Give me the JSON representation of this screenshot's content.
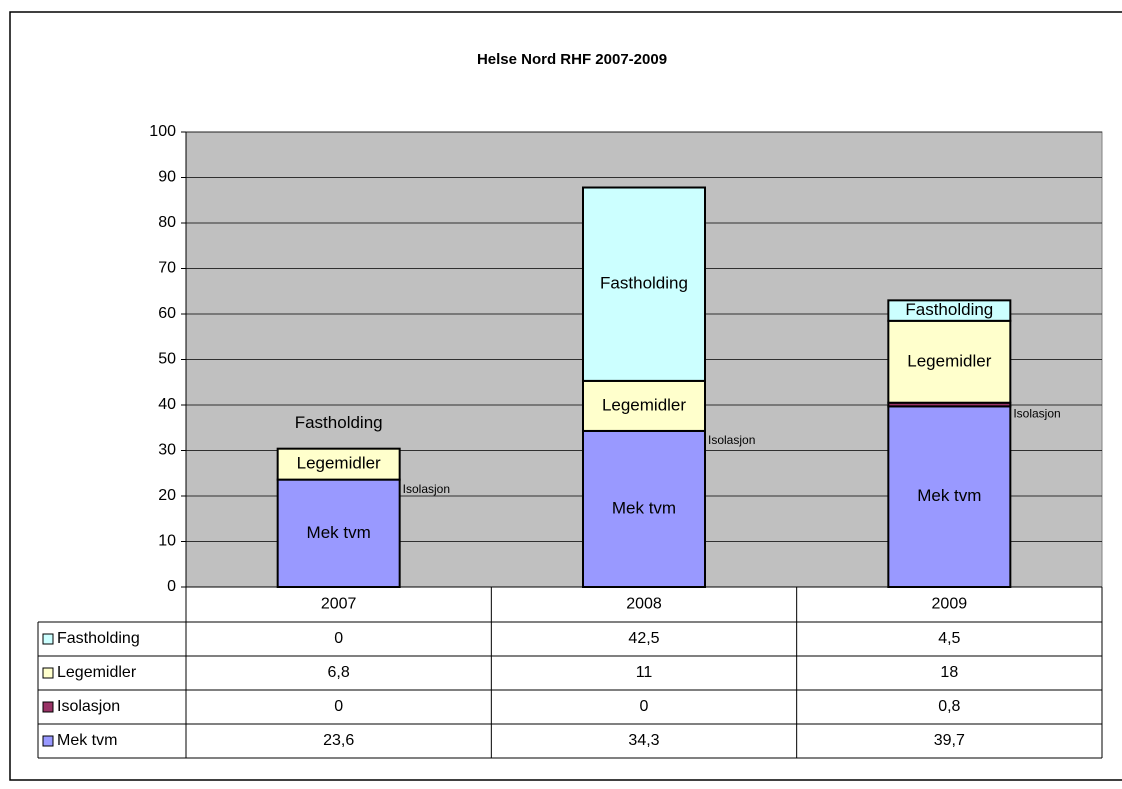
{
  "chart_data": {
    "type": "stacked_bar",
    "title": "Helse Nord RHF 2007-2009",
    "categories": [
      "2007",
      "2008",
      "2009"
    ],
    "series": [
      {
        "name": "Mek tvm",
        "color": "#9999ff",
        "values": [
          23.6,
          34.3,
          39.7
        ],
        "value_labels": [
          "23,6",
          "34,3",
          "39,7"
        ]
      },
      {
        "name": "Isolasjon",
        "color": "#993366",
        "values": [
          0,
          0,
          0.8
        ],
        "value_labels": [
          "0",
          "0",
          "0,8"
        ]
      },
      {
        "name": "Legemidler",
        "color": "#ffffcc",
        "values": [
          6.8,
          11,
          18
        ],
        "value_labels": [
          "6,8",
          "11",
          "18"
        ]
      },
      {
        "name": "Fastholding",
        "color": "#ccffff",
        "values": [
          0,
          42.5,
          4.5
        ],
        "value_labels": [
          "0",
          "42,5",
          "4,5"
        ]
      }
    ],
    "ylim": [
      0,
      100
    ],
    "yticks": [
      0,
      10,
      20,
      30,
      40,
      50,
      60,
      70,
      80,
      90,
      100
    ],
    "grid": true,
    "plot_background": "#c0c0c0"
  }
}
